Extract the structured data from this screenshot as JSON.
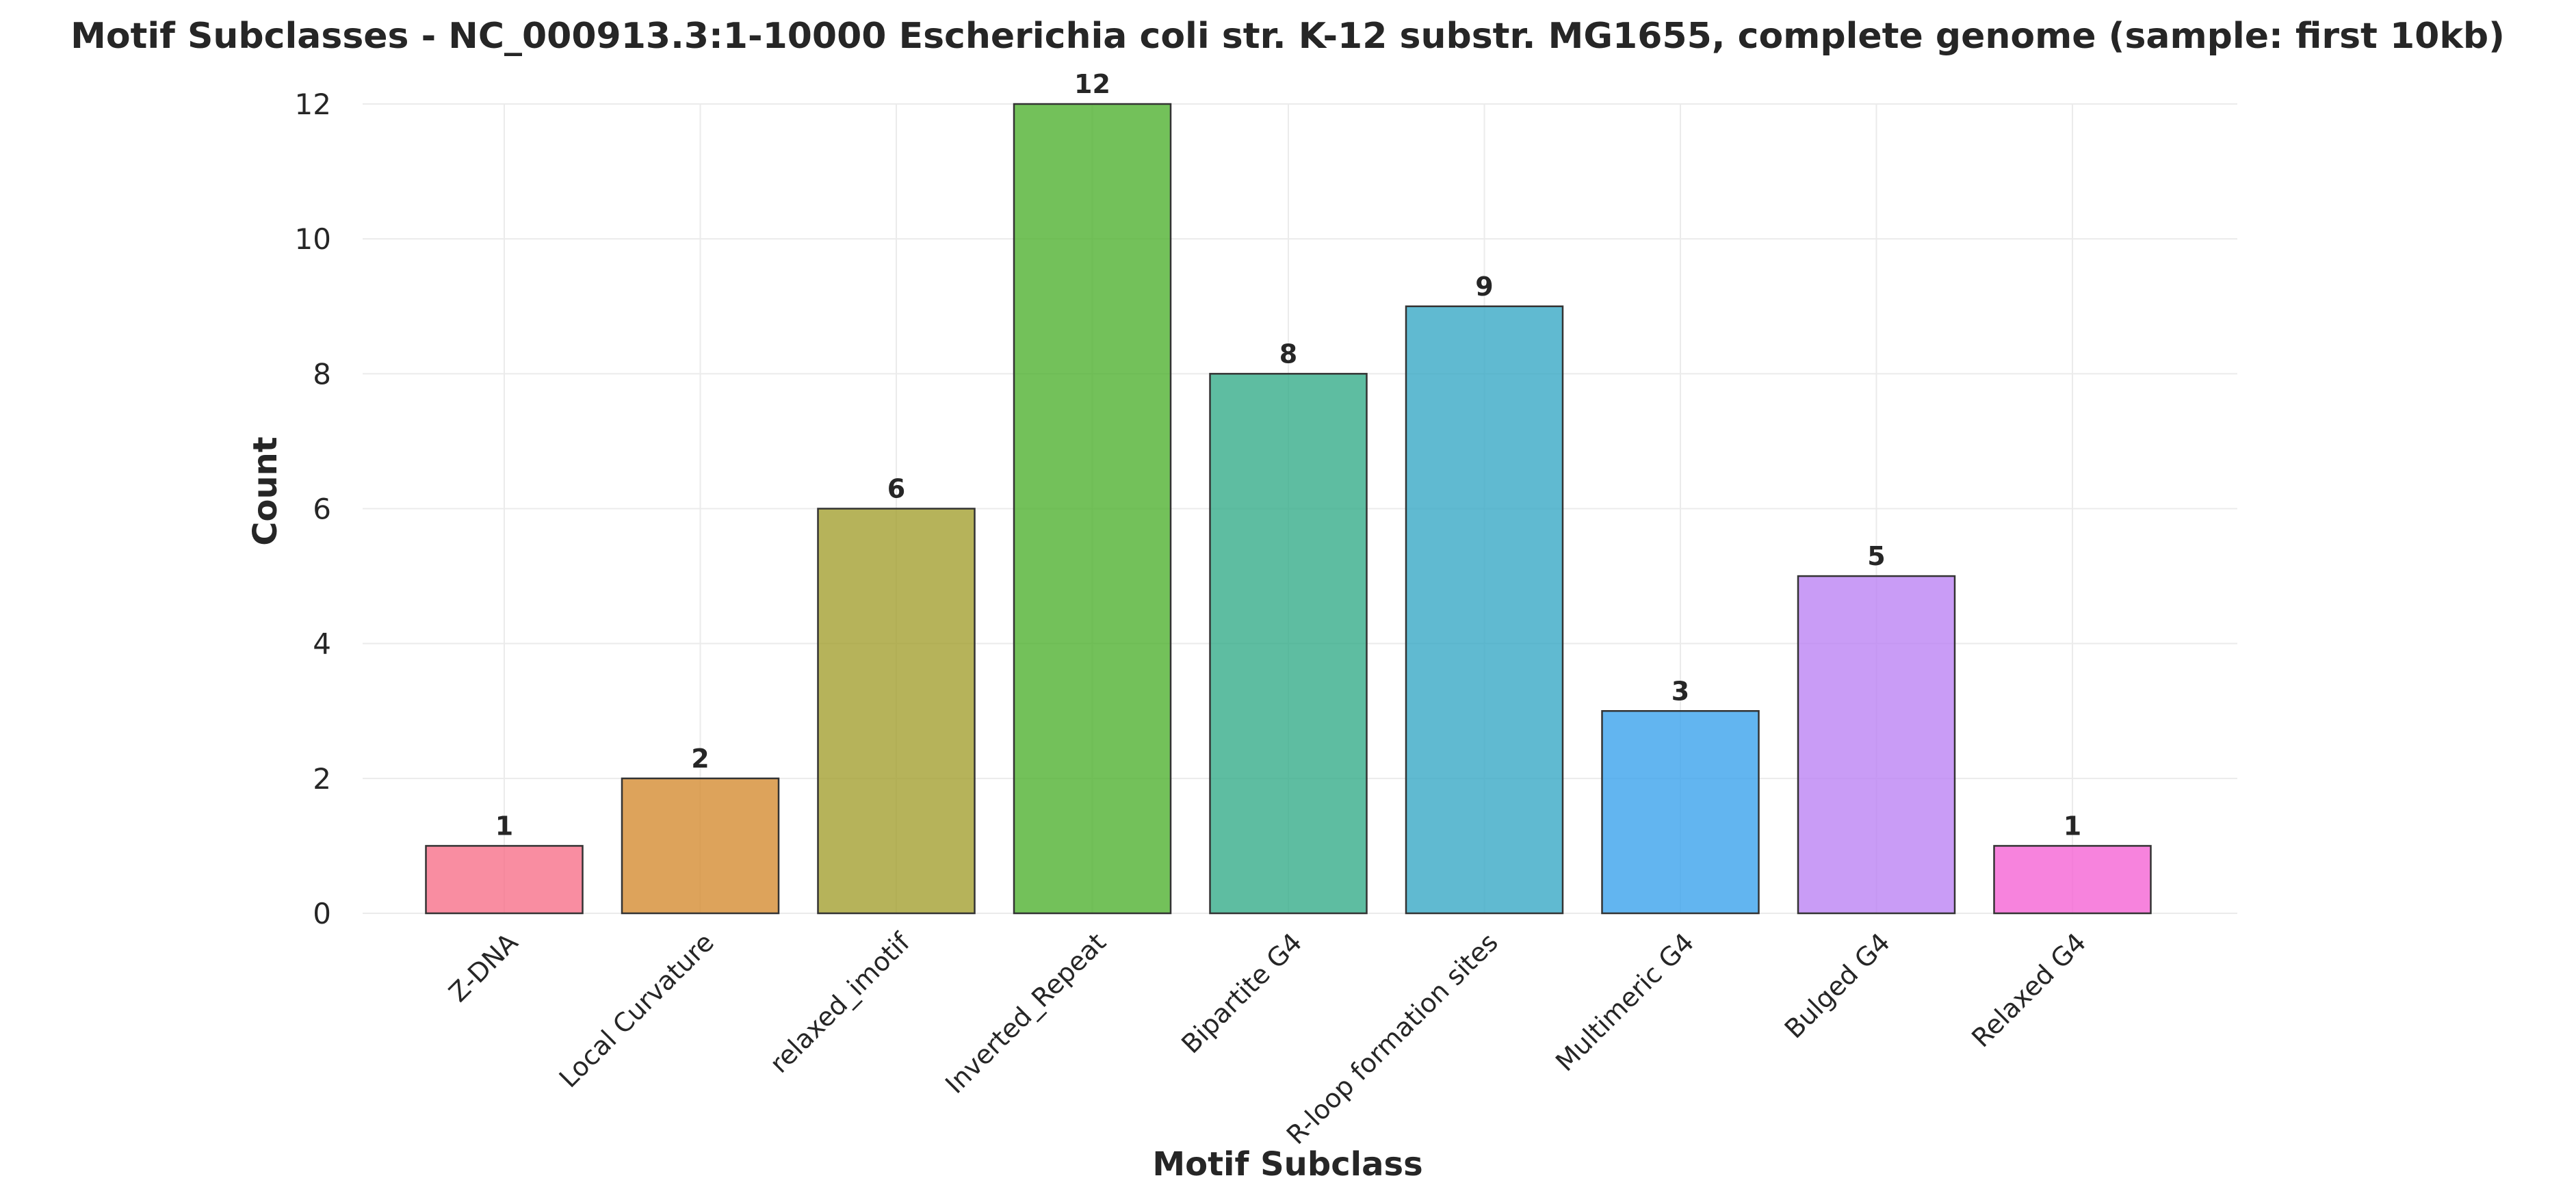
{
  "chart_data": {
    "type": "bar",
    "title": "Motif Subclasses - NC_000913.3:1-10000 Escherichia coli str. K-12 substr. MG1655, complete genome (sample: first 10kb)",
    "xlabel": "Motif Subclass",
    "ylabel": "Count",
    "categories": [
      "Z-DNA",
      "Local Curvature",
      "relaxed_imotif",
      "Inverted_Repeat",
      "Bipartite G4",
      "R-loop formation sites",
      "Multimeric G4",
      "Bulged G4",
      "Relaxed G4"
    ],
    "values": [
      1,
      2,
      6,
      12,
      8,
      9,
      3,
      5,
      1
    ],
    "colors": [
      "#f77189",
      "#d58c32",
      "#a4a031",
      "#50b131",
      "#36ad8a",
      "#38a9c5",
      "#3ba3ec",
      "#bb83f4",
      "#f564d4"
    ],
    "ylim": [
      0,
      12
    ],
    "yticks": [
      0,
      2,
      4,
      6,
      8,
      10,
      12
    ],
    "grid": true,
    "legend": "none"
  }
}
